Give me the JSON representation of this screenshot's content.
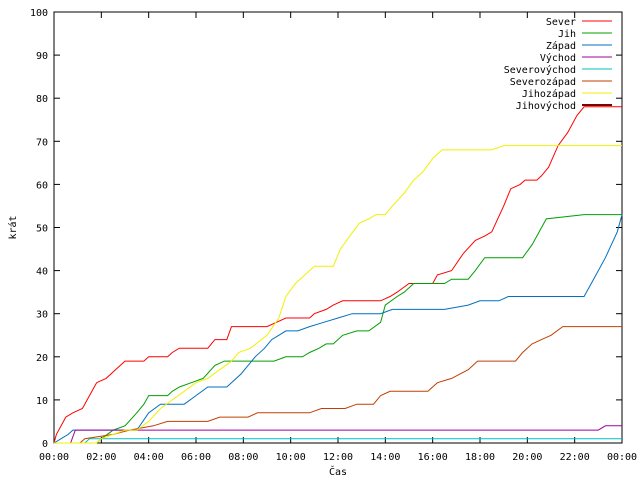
{
  "chart_data": {
    "type": "line",
    "title": "",
    "xlabel": "Čas",
    "ylabel": "krát",
    "xlim": [
      0,
      24
    ],
    "ylim": [
      0,
      100
    ],
    "x_ticks": [
      {
        "v": 0,
        "label": "00:00"
      },
      {
        "v": 2,
        "label": "02:00"
      },
      {
        "v": 4,
        "label": "04:00"
      },
      {
        "v": 6,
        "label": "06:00"
      },
      {
        "v": 8,
        "label": "08:00"
      },
      {
        "v": 10,
        "label": "10:00"
      },
      {
        "v": 12,
        "label": "12:00"
      },
      {
        "v": 14,
        "label": "14:00"
      },
      {
        "v": 16,
        "label": "16:00"
      },
      {
        "v": 18,
        "label": "18:00"
      },
      {
        "v": 20,
        "label": "20:00"
      },
      {
        "v": 22,
        "label": "22:00"
      },
      {
        "v": 24,
        "label": "00:00"
      }
    ],
    "y_ticks": [
      0,
      10,
      20,
      30,
      40,
      50,
      60,
      70,
      80,
      90,
      100
    ],
    "grid": false,
    "legend_position": "top-right",
    "series": [
      {
        "name": "Sever",
        "color": "#ff0000",
        "points": [
          [
            0,
            0
          ],
          [
            0.1,
            2
          ],
          [
            0.3,
            4
          ],
          [
            0.5,
            6
          ],
          [
            0.8,
            7
          ],
          [
            1.2,
            8
          ],
          [
            1.5,
            11
          ],
          [
            1.8,
            14
          ],
          [
            2.2,
            15
          ],
          [
            2.6,
            17
          ],
          [
            3.0,
            19
          ],
          [
            3.8,
            19
          ],
          [
            4.0,
            20
          ],
          [
            4.8,
            20
          ],
          [
            5.0,
            21
          ],
          [
            5.3,
            22
          ],
          [
            6.5,
            22
          ],
          [
            6.8,
            24
          ],
          [
            7.3,
            24
          ],
          [
            7.5,
            27
          ],
          [
            9.0,
            27
          ],
          [
            9.4,
            28
          ],
          [
            9.8,
            29
          ],
          [
            10.8,
            29
          ],
          [
            11.0,
            30
          ],
          [
            11.5,
            31
          ],
          [
            11.8,
            32
          ],
          [
            12.2,
            33
          ],
          [
            13.8,
            33
          ],
          [
            14.2,
            34
          ],
          [
            14.5,
            35
          ],
          [
            15.0,
            37
          ],
          [
            16.0,
            37
          ],
          [
            16.2,
            39
          ],
          [
            16.8,
            40
          ],
          [
            17.3,
            44
          ],
          [
            17.8,
            47
          ],
          [
            18.2,
            48
          ],
          [
            18.5,
            49
          ],
          [
            19.0,
            55
          ],
          [
            19.3,
            59
          ],
          [
            19.7,
            60
          ],
          [
            19.9,
            61
          ],
          [
            20.4,
            61
          ],
          [
            20.6,
            62
          ],
          [
            20.9,
            64
          ],
          [
            21.3,
            69
          ],
          [
            21.7,
            72
          ],
          [
            22.1,
            76
          ],
          [
            22.4,
            78
          ],
          [
            24,
            78
          ]
        ]
      },
      {
        "name": "Jih",
        "color": "#00a000",
        "points": [
          [
            0,
            0
          ],
          [
            1.8,
            0
          ],
          [
            2.0,
            1
          ],
          [
            2.5,
            3
          ],
          [
            3.0,
            4
          ],
          [
            3.5,
            7
          ],
          [
            3.8,
            9
          ],
          [
            4.0,
            11
          ],
          [
            4.8,
            11
          ],
          [
            5.0,
            12
          ],
          [
            5.3,
            13
          ],
          [
            5.8,
            14
          ],
          [
            6.3,
            15
          ],
          [
            6.8,
            18
          ],
          [
            7.2,
            19
          ],
          [
            9.3,
            19
          ],
          [
            9.8,
            20
          ],
          [
            10.5,
            20
          ],
          [
            10.8,
            21
          ],
          [
            11.2,
            22
          ],
          [
            11.5,
            23
          ],
          [
            11.8,
            23
          ],
          [
            12.2,
            25
          ],
          [
            12.8,
            26
          ],
          [
            13.3,
            26
          ],
          [
            13.8,
            28
          ],
          [
            14.0,
            32
          ],
          [
            14.5,
            34
          ],
          [
            14.8,
            35
          ],
          [
            15.2,
            37
          ],
          [
            16.5,
            37
          ],
          [
            16.8,
            38
          ],
          [
            17.5,
            38
          ],
          [
            17.8,
            40
          ],
          [
            18.2,
            43
          ],
          [
            19.8,
            43
          ],
          [
            20.2,
            46
          ],
          [
            20.8,
            52
          ],
          [
            22.4,
            53
          ],
          [
            24,
            53
          ]
        ]
      },
      {
        "name": "Západ",
        "color": "#0070c0",
        "points": [
          [
            0,
            0
          ],
          [
            0.3,
            1
          ],
          [
            0.6,
            2
          ],
          [
            0.8,
            3
          ],
          [
            3.5,
            3
          ],
          [
            4.0,
            7
          ],
          [
            4.5,
            9
          ],
          [
            5.5,
            9
          ],
          [
            6.0,
            11
          ],
          [
            6.5,
            13
          ],
          [
            7.3,
            13
          ],
          [
            7.7,
            15
          ],
          [
            7.9,
            16
          ],
          [
            8.2,
            18
          ],
          [
            8.5,
            20
          ],
          [
            8.9,
            22
          ],
          [
            9.2,
            24
          ],
          [
            9.5,
            25
          ],
          [
            9.8,
            26
          ],
          [
            10.3,
            26
          ],
          [
            10.8,
            27
          ],
          [
            11.4,
            28
          ],
          [
            12.0,
            29
          ],
          [
            12.6,
            30
          ],
          [
            13.2,
            30
          ],
          [
            13.8,
            30
          ],
          [
            14.3,
            31
          ],
          [
            16.5,
            31
          ],
          [
            17.5,
            32
          ],
          [
            18.0,
            33
          ],
          [
            18.8,
            33
          ],
          [
            19.2,
            34
          ],
          [
            22.4,
            34
          ],
          [
            22.8,
            38
          ],
          [
            23.3,
            43
          ],
          [
            23.8,
            49
          ],
          [
            24,
            53
          ]
        ]
      },
      {
        "name": "Východ",
        "color": "#a000a0",
        "points": [
          [
            0,
            0
          ],
          [
            0.7,
            0
          ],
          [
            0.9,
            3
          ],
          [
            23.0,
            3
          ],
          [
            23.3,
            4
          ],
          [
            24,
            4
          ]
        ]
      },
      {
        "name": "Severovýchod",
        "color": "#00c0c0",
        "points": [
          [
            0,
            0
          ],
          [
            1.3,
            0
          ],
          [
            1.5,
            1
          ],
          [
            24,
            1
          ]
        ]
      },
      {
        "name": "Severozápad",
        "color": "#c04000",
        "points": [
          [
            0,
            0
          ],
          [
            1.1,
            0
          ],
          [
            1.3,
            1
          ],
          [
            2.5,
            2
          ],
          [
            3.2,
            3
          ],
          [
            4.2,
            4
          ],
          [
            4.8,
            5
          ],
          [
            6.5,
            5
          ],
          [
            7.0,
            6
          ],
          [
            8.2,
            6
          ],
          [
            8.6,
            7
          ],
          [
            10.8,
            7
          ],
          [
            11.3,
            8
          ],
          [
            12.3,
            8
          ],
          [
            12.8,
            9
          ],
          [
            13.5,
            9
          ],
          [
            13.8,
            11
          ],
          [
            14.2,
            12
          ],
          [
            15.8,
            12
          ],
          [
            16.2,
            14
          ],
          [
            16.8,
            15
          ],
          [
            17.5,
            17
          ],
          [
            17.9,
            19
          ],
          [
            19.5,
            19
          ],
          [
            19.8,
            21
          ],
          [
            20.2,
            23
          ],
          [
            20.6,
            24
          ],
          [
            21.0,
            25
          ],
          [
            21.5,
            27
          ],
          [
            24,
            27
          ]
        ]
      },
      {
        "name": "Jihozápad",
        "color": "#f0f000",
        "points": [
          [
            0,
            0
          ],
          [
            1.8,
            0
          ],
          [
            2.0,
            1
          ],
          [
            2.5,
            2
          ],
          [
            3.0,
            3
          ],
          [
            3.5,
            3
          ],
          [
            4.0,
            5
          ],
          [
            4.5,
            8
          ],
          [
            5.0,
            10
          ],
          [
            5.5,
            12
          ],
          [
            6.0,
            14
          ],
          [
            6.5,
            15
          ],
          [
            7.0,
            17
          ],
          [
            7.5,
            19
          ],
          [
            7.8,
            21
          ],
          [
            8.3,
            22
          ],
          [
            9.0,
            25
          ],
          [
            9.5,
            29
          ],
          [
            9.8,
            34
          ],
          [
            10.2,
            37
          ],
          [
            10.6,
            39
          ],
          [
            11.0,
            41
          ],
          [
            11.8,
            41
          ],
          [
            12.1,
            45
          ],
          [
            12.5,
            48
          ],
          [
            12.9,
            51
          ],
          [
            13.3,
            52
          ],
          [
            13.6,
            53
          ],
          [
            14.0,
            53
          ],
          [
            14.3,
            55
          ],
          [
            14.8,
            58
          ],
          [
            15.2,
            61
          ],
          [
            15.6,
            63
          ],
          [
            16.0,
            66
          ],
          [
            16.4,
            68
          ],
          [
            18.5,
            68
          ],
          [
            19.0,
            69
          ],
          [
            24,
            69
          ]
        ]
      },
      {
        "name": "Jihovýchod",
        "color": "#800000",
        "points": []
      }
    ]
  }
}
